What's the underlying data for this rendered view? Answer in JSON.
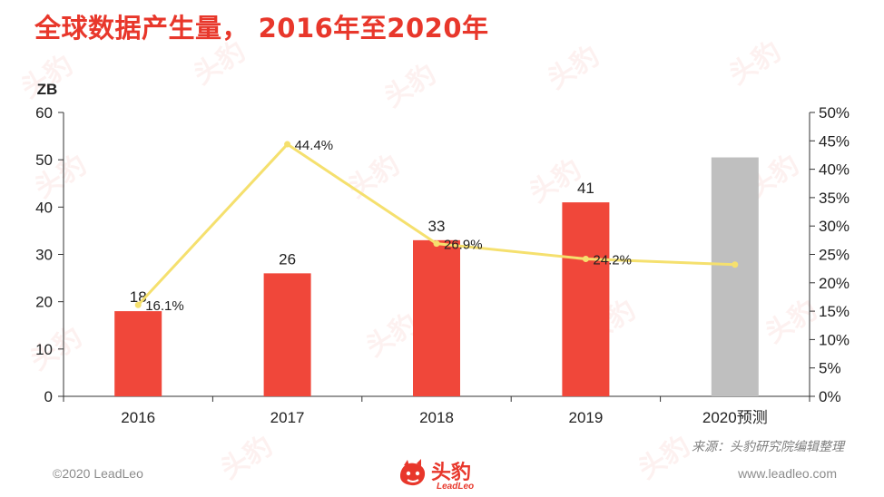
{
  "page": {
    "title": "全球数据产生量， 2016年至2020年",
    "source_note": "来源：头豹研究院编辑整理",
    "copyright": "©2020 LeadLeo",
    "website": "www.leadleo.com",
    "logo": {
      "name": "头豹",
      "sub": "LeadLeo"
    },
    "watermark_text": "头豹"
  },
  "colors": {
    "title": "#e8372b",
    "bar": "#f0473a",
    "forecast_bar": "#bfbfbf",
    "line": "#f5e06e",
    "axis": "#333333"
  },
  "chart_data": {
    "type": "bar",
    "categories": [
      "2016",
      "2017",
      "2018",
      "2019",
      "2020预测"
    ],
    "y_unit_label": "ZB",
    "ylim": [
      0,
      60
    ],
    "yticks": [
      0,
      10,
      20,
      30,
      40,
      50,
      60
    ],
    "y2lim": [
      0,
      50
    ],
    "y2ticks": [
      "0%",
      "5%",
      "10%",
      "15%",
      "20%",
      "25%",
      "30%",
      "35%",
      "40%",
      "45%",
      "50%"
    ],
    "grid": false,
    "series": [
      {
        "type": "bar",
        "values": [
          18,
          26,
          33,
          41,
          50.5
        ],
        "labels": [
          "18",
          "26",
          "33",
          "41",
          ""
        ],
        "highlight": [
          false,
          false,
          false,
          false,
          true
        ]
      },
      {
        "type": "line",
        "axis": "right",
        "values": [
          16.1,
          44.4,
          26.9,
          24.2,
          23.2
        ],
        "labels": [
          "16.1%",
          "44.4%",
          "26.9%",
          "24.2%",
          ""
        ]
      }
    ]
  }
}
